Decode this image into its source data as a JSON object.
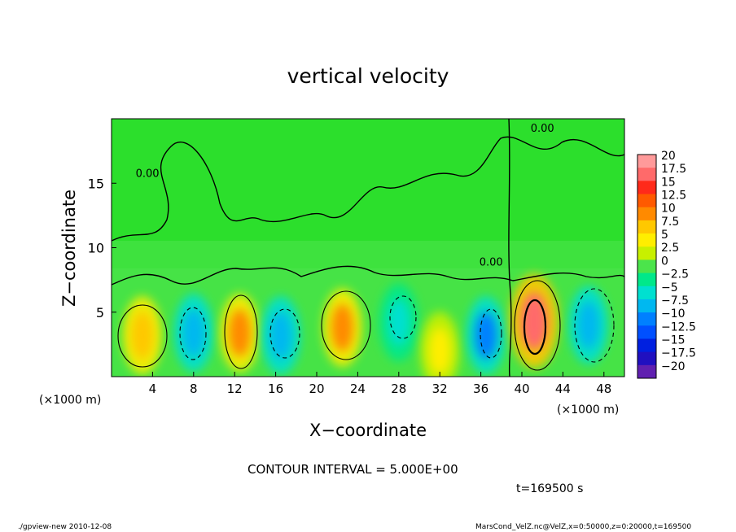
{
  "chart_data": {
    "type": "heatmap",
    "title": "vertical velocity",
    "xlabel": "X−coordinate",
    "ylabel": "Z−coordinate",
    "x_unit_left": "(×1000 m)",
    "x_unit_right": "(×1000 m)",
    "xlim": [
      0,
      50
    ],
    "ylim": [
      0,
      20
    ],
    "xticks": [
      4,
      8,
      12,
      16,
      20,
      24,
      28,
      32,
      36,
      40,
      44,
      48
    ],
    "xtick_labels": [
      "4",
      "8",
      "12",
      "16",
      "20",
      "24",
      "28",
      "32",
      "36",
      "40",
      "44",
      "48"
    ],
    "yticks": [
      5,
      10,
      15
    ],
    "ytick_labels": [
      "5",
      "10",
      "15"
    ],
    "contour_labels": [
      {
        "text": "0.00",
        "x": 42.0,
        "z": 19.0
      },
      {
        "text": "0.00",
        "x": 3.5,
        "z": 15.5
      },
      {
        "text": "0.00",
        "x": 37.0,
        "z": 8.6
      }
    ],
    "cells": [
      {
        "x": 3.0,
        "z": 3.2,
        "w": 8.5
      },
      {
        "x": 8.0,
        "z": 3.4,
        "w": -8.0
      },
      {
        "x": 12.5,
        "z": 3.4,
        "w": 9.0
      },
      {
        "x": 16.5,
        "z": 3.2,
        "w": -8.5
      },
      {
        "x": 22.5,
        "z": 3.8,
        "w": 9.5
      },
      {
        "x": 28.0,
        "z": 4.2,
        "w": -5.0
      },
      {
        "x": 32.0,
        "z": 2.0,
        "w": 5.0
      },
      {
        "x": 36.5,
        "z": 3.2,
        "w": -9.0
      },
      {
        "x": 41.2,
        "z": 4.3,
        "w": 17.0
      },
      {
        "x": 46.5,
        "z": 4.0,
        "w": -8.5
      }
    ],
    "colorbar": {
      "levels": [
        "20",
        "17.5",
        "15",
        "12.5",
        "10",
        "7.5",
        "5",
        "2.5",
        "0",
        "−2.5",
        "−5",
        "−7.5",
        "−10",
        "−12.5",
        "−15",
        "−17.5",
        "−20"
      ],
      "colors": [
        "#ff9a9a",
        "#ff6a6a",
        "#ff2a1a",
        "#ff5a00",
        "#ff8a00",
        "#ffc800",
        "#ffee00",
        "#c8f000",
        "#4be44b",
        "#00e88a",
        "#00e0d0",
        "#00b8f0",
        "#0080ff",
        "#0050ff",
        "#0020e0",
        "#2010c0",
        "#6020b0"
      ]
    }
  },
  "contour_interval": "CONTOUR INTERVAL = 5.000E+00",
  "time_label": "t=169500 s",
  "footer_left": "./gpview-new  2010-12-08",
  "footer_right": "MarsCond_VelZ.nc@VelZ,x=0:50000,z=0:20000,t=169500"
}
